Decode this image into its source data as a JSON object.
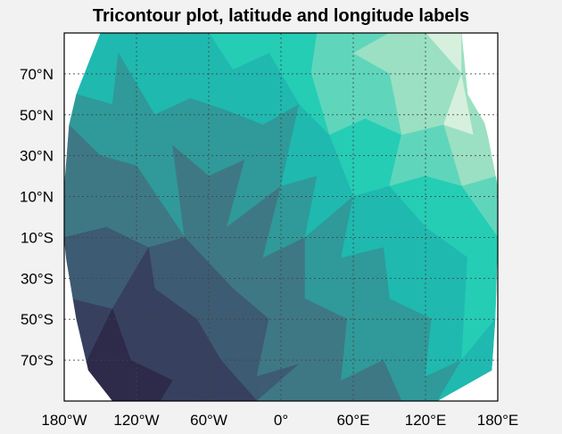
{
  "chart_data": {
    "type": "tricontour",
    "title": "Tricontour plot, latitude and longitude labels",
    "xlabel": "",
    "ylabel": "",
    "xlim": [
      -180,
      180
    ],
    "ylim": [
      -90,
      90
    ],
    "grid": true,
    "x_ticks": [
      {
        "value": -180,
        "label": "180°W"
      },
      {
        "value": -120,
        "label": "120°W"
      },
      {
        "value": -60,
        "label": "60°W"
      },
      {
        "value": 0,
        "label": "0°"
      },
      {
        "value": 60,
        "label": "60°E"
      },
      {
        "value": 120,
        "label": "120°E"
      },
      {
        "value": 180,
        "label": "180°E"
      }
    ],
    "y_ticks": [
      {
        "value": 70,
        "label": "70°N"
      },
      {
        "value": 50,
        "label": "50°N"
      },
      {
        "value": 30,
        "label": "30°N"
      },
      {
        "value": 10,
        "label": "10°N"
      },
      {
        "value": -10,
        "label": "10°S"
      },
      {
        "value": -30,
        "label": "30°S"
      },
      {
        "value": -50,
        "label": "50°S"
      },
      {
        "value": -70,
        "label": "70°S"
      }
    ],
    "colormap": [
      "#2d2a4a",
      "#37405e",
      "#3d5b72",
      "#3f7885",
      "#2f9a99",
      "#1fb9b0",
      "#25cdb5",
      "#5fd6bb",
      "#9be0c2",
      "#d6f0dd"
    ],
    "color_levels": [
      0,
      1,
      2,
      3,
      4,
      5,
      6,
      7,
      8,
      9
    ],
    "boundary_lon_at_lat": [
      {
        "lat": 90,
        "west": -150,
        "east": 150
      },
      {
        "lat": 60,
        "west": -170,
        "east": 155
      },
      {
        "lat": 45,
        "west": -176,
        "east": 170
      },
      {
        "lat": 15,
        "west": -180,
        "east": 180
      },
      {
        "lat": -15,
        "west": -180,
        "east": 180
      },
      {
        "lat": -50,
        "west": -170,
        "east": 178
      },
      {
        "lat": -75,
        "west": -160,
        "east": 175
      },
      {
        "lat": -90,
        "west": -140,
        "east": 130
      }
    ],
    "points": [
      {
        "lon": -150,
        "lat": 90,
        "v": 6
      },
      {
        "lon": -120,
        "lat": 90,
        "v": 5
      },
      {
        "lon": -90,
        "lat": 90,
        "v": 5
      },
      {
        "lon": -60,
        "lat": 90,
        "v": 6
      },
      {
        "lon": -30,
        "lat": 90,
        "v": 6
      },
      {
        "lon": 0,
        "lat": 90,
        "v": 6
      },
      {
        "lon": 30,
        "lat": 90,
        "v": 7
      },
      {
        "lon": 60,
        "lat": 90,
        "v": 7
      },
      {
        "lon": 90,
        "lat": 90,
        "v": 7
      },
      {
        "lon": 120,
        "lat": 90,
        "v": 8
      },
      {
        "lon": 150,
        "lat": 90,
        "v": 9
      },
      {
        "lon": -135,
        "lat": 80,
        "v": 5
      },
      {
        "lon": -100,
        "lat": 75,
        "v": 5
      },
      {
        "lon": -70,
        "lat": 85,
        "v": 5
      },
      {
        "lon": -40,
        "lat": 72,
        "v": 5
      },
      {
        "lon": -10,
        "lat": 80,
        "v": 6
      },
      {
        "lon": 25,
        "lat": 70,
        "v": 6
      },
      {
        "lon": 60,
        "lat": 80,
        "v": 8
      },
      {
        "lon": 90,
        "lat": 70,
        "v": 8
      },
      {
        "lon": 120,
        "lat": 65,
        "v": 8
      },
      {
        "lon": 150,
        "lat": 70,
        "v": 9
      },
      {
        "lon": -170,
        "lat": 60,
        "v": 4
      },
      {
        "lon": -140,
        "lat": 55,
        "v": 4
      },
      {
        "lon": -105,
        "lat": 50,
        "v": 4
      },
      {
        "lon": -75,
        "lat": 58,
        "v": 5
      },
      {
        "lon": -45,
        "lat": 52,
        "v": 5
      },
      {
        "lon": -15,
        "lat": 45,
        "v": 4
      },
      {
        "lon": 15,
        "lat": 55,
        "v": 5
      },
      {
        "lon": 40,
        "lat": 40,
        "v": 6
      },
      {
        "lon": 70,
        "lat": 48,
        "v": 6
      },
      {
        "lon": 100,
        "lat": 40,
        "v": 7
      },
      {
        "lon": 135,
        "lat": 45,
        "v": 8
      },
      {
        "lon": 160,
        "lat": 40,
        "v": 9
      },
      {
        "lon": -176,
        "lat": 45,
        "v": 4
      },
      {
        "lon": -180,
        "lat": 20,
        "v": 3
      },
      {
        "lon": -150,
        "lat": 30,
        "v": 3
      },
      {
        "lon": -120,
        "lat": 25,
        "v": 4
      },
      {
        "lon": -90,
        "lat": 35,
        "v": 4
      },
      {
        "lon": -60,
        "lat": 20,
        "v": 3
      },
      {
        "lon": -30,
        "lat": 28,
        "v": 4
      },
      {
        "lon": 0,
        "lat": 15,
        "v": 4
      },
      {
        "lon": 30,
        "lat": 20,
        "v": 5
      },
      {
        "lon": 60,
        "lat": 10,
        "v": 5
      },
      {
        "lon": 90,
        "lat": 15,
        "v": 6
      },
      {
        "lon": 120,
        "lat": 20,
        "v": 7
      },
      {
        "lon": 150,
        "lat": 15,
        "v": 7
      },
      {
        "lon": 180,
        "lat": 20,
        "v": 7
      },
      {
        "lon": -180,
        "lat": -10,
        "v": 2
      },
      {
        "lon": -145,
        "lat": -5,
        "v": 3
      },
      {
        "lon": -110,
        "lat": -15,
        "v": 2
      },
      {
        "lon": -80,
        "lat": -10,
        "v": 3
      },
      {
        "lon": -45,
        "lat": -5,
        "v": 3
      },
      {
        "lon": -15,
        "lat": -20,
        "v": 3
      },
      {
        "lon": 20,
        "lat": -10,
        "v": 4
      },
      {
        "lon": 50,
        "lat": -20,
        "v": 4
      },
      {
        "lon": 85,
        "lat": -15,
        "v": 5
      },
      {
        "lon": 120,
        "lat": -5,
        "v": 5
      },
      {
        "lon": 155,
        "lat": -20,
        "v": 6
      },
      {
        "lon": 180,
        "lat": -10,
        "v": 6
      },
      {
        "lon": -175,
        "lat": -40,
        "v": 1
      },
      {
        "lon": -140,
        "lat": -45,
        "v": 1
      },
      {
        "lon": -105,
        "lat": -35,
        "v": 1
      },
      {
        "lon": -70,
        "lat": -50,
        "v": 2
      },
      {
        "lon": -40,
        "lat": -35,
        "v": 2
      },
      {
        "lon": -10,
        "lat": -50,
        "v": 3
      },
      {
        "lon": 20,
        "lat": -40,
        "v": 3
      },
      {
        "lon": 55,
        "lat": -50,
        "v": 4
      },
      {
        "lon": 90,
        "lat": -40,
        "v": 4
      },
      {
        "lon": 125,
        "lat": -50,
        "v": 5
      },
      {
        "lon": 178,
        "lat": -50,
        "v": 6
      },
      {
        "lon": -165,
        "lat": -75,
        "v": 0
      },
      {
        "lon": -125,
        "lat": -70,
        "v": 0
      },
      {
        "lon": -90,
        "lat": -80,
        "v": 1
      },
      {
        "lon": -50,
        "lat": -70,
        "v": 1
      },
      {
        "lon": -20,
        "lat": -78,
        "v": 2
      },
      {
        "lon": 15,
        "lat": -72,
        "v": 3
      },
      {
        "lon": 50,
        "lat": -80,
        "v": 3
      },
      {
        "lon": 85,
        "lat": -70,
        "v": 4
      },
      {
        "lon": 120,
        "lat": -78,
        "v": 4
      },
      {
        "lon": 150,
        "lat": -70,
        "v": 5
      },
      {
        "lon": 175,
        "lat": -75,
        "v": 5
      },
      {
        "lon": -140,
        "lat": -90,
        "v": 0
      },
      {
        "lon": -100,
        "lat": -90,
        "v": 0
      },
      {
        "lon": -60,
        "lat": -90,
        "v": 1
      },
      {
        "lon": -20,
        "lat": -90,
        "v": 2
      },
      {
        "lon": 20,
        "lat": -90,
        "v": 3
      },
      {
        "lon": 60,
        "lat": -90,
        "v": 3
      },
      {
        "lon": 100,
        "lat": -90,
        "v": 3
      },
      {
        "lon": 130,
        "lat": -90,
        "v": 4
      }
    ]
  }
}
